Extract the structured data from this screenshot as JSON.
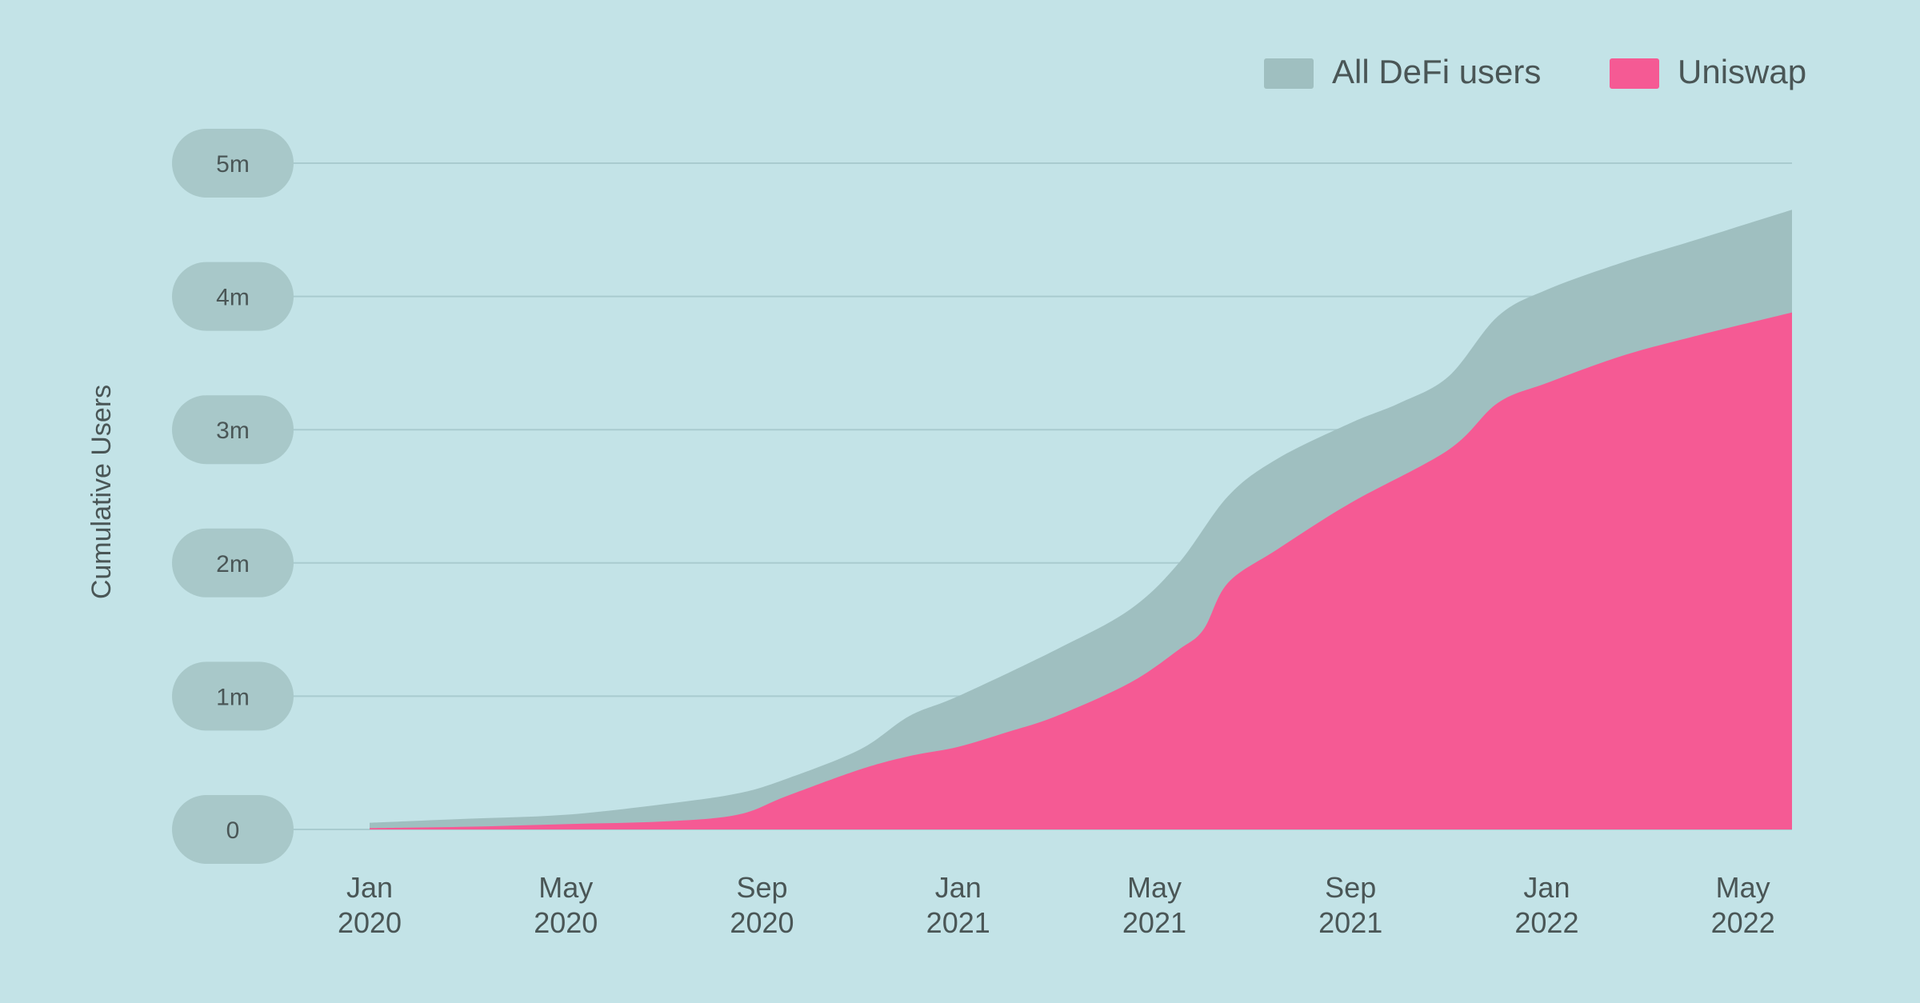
{
  "chart_data": {
    "type": "area",
    "title": "",
    "xlabel": "",
    "ylabel": "Cumulative Users",
    "legend_position": "top-right",
    "grid": true,
    "x_ticks": [
      {
        "month": 0,
        "line1": "Jan",
        "line2": "2020"
      },
      {
        "month": 4,
        "line1": "May",
        "line2": "2020"
      },
      {
        "month": 8,
        "line1": "Sep",
        "line2": "2020"
      },
      {
        "month": 12,
        "line1": "Jan",
        "line2": "2021"
      },
      {
        "month": 16,
        "line1": "May",
        "line2": "2021"
      },
      {
        "month": 20,
        "line1": "Sep",
        "line2": "2021"
      },
      {
        "month": 24,
        "line1": "Jan",
        "line2": "2022"
      },
      {
        "month": 28,
        "line1": "May",
        "line2": "2022"
      }
    ],
    "xlim": [
      0,
      29
    ],
    "y_ticks": [
      {
        "value": 0,
        "label": "0"
      },
      {
        "value": 1000000,
        "label": "1m"
      },
      {
        "value": 2000000,
        "label": "2m"
      },
      {
        "value": 3000000,
        "label": "3m"
      },
      {
        "value": 4000000,
        "label": "4m"
      },
      {
        "value": 5000000,
        "label": "5m"
      }
    ],
    "ylim": [
      0,
      5000000
    ],
    "series": [
      {
        "name": "All DeFi users",
        "color": "#9fbfc0",
        "points": [
          [
            0,
            50000
          ],
          [
            2,
            80000
          ],
          [
            4,
            110000
          ],
          [
            6,
            190000
          ],
          [
            7.5,
            270000
          ],
          [
            8.5,
            380000
          ],
          [
            10,
            600000
          ],
          [
            11,
            850000
          ],
          [
            12,
            1000000
          ],
          [
            14,
            1350000
          ],
          [
            15.5,
            1650000
          ],
          [
            16.5,
            2000000
          ],
          [
            17.5,
            2500000
          ],
          [
            18.5,
            2780000
          ],
          [
            20,
            3050000
          ],
          [
            21,
            3200000
          ],
          [
            22,
            3400000
          ],
          [
            23,
            3850000
          ],
          [
            24,
            4050000
          ],
          [
            25.5,
            4250000
          ],
          [
            27,
            4420000
          ],
          [
            29,
            4650000
          ]
        ]
      },
      {
        "name": "Uniswap",
        "color": "#f55a94",
        "points": [
          [
            0,
            10000
          ],
          [
            2,
            20000
          ],
          [
            4,
            40000
          ],
          [
            6,
            60000
          ],
          [
            7.5,
            110000
          ],
          [
            8.5,
            250000
          ],
          [
            10,
            450000
          ],
          [
            11,
            550000
          ],
          [
            12,
            620000
          ],
          [
            13,
            730000
          ],
          [
            14,
            850000
          ],
          [
            15.5,
            1100000
          ],
          [
            16.5,
            1350000
          ],
          [
            17,
            1500000
          ],
          [
            17.5,
            1850000
          ],
          [
            18.5,
            2100000
          ],
          [
            20,
            2450000
          ],
          [
            22,
            2850000
          ],
          [
            23,
            3200000
          ],
          [
            24,
            3350000
          ],
          [
            25.5,
            3550000
          ],
          [
            27,
            3700000
          ],
          [
            29,
            3880000
          ]
        ]
      }
    ]
  }
}
